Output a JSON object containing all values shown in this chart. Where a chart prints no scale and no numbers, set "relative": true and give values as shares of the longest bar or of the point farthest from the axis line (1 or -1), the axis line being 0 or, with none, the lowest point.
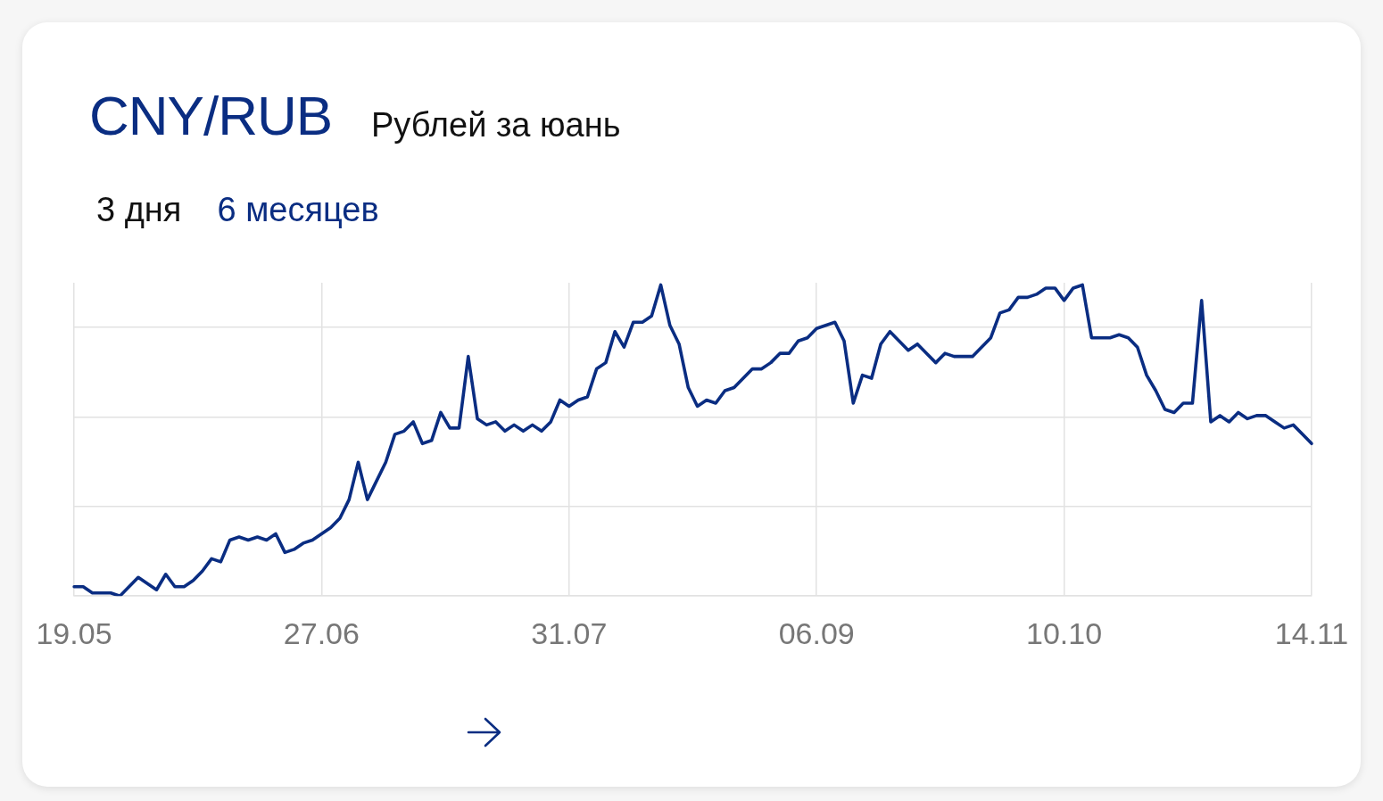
{
  "chart_data": {
    "type": "line",
    "title": "CNY/RUB",
    "subtitle": "Рублей за юань",
    "annotations": [
      "3 дня",
      "6 месяцев"
    ],
    "categories": [
      "19.05",
      null,
      null,
      null,
      null,
      null,
      null,
      null,
      null,
      null,
      null,
      null,
      null,
      null,
      null,
      null,
      null,
      null,
      null,
      null,
      null,
      null,
      null,
      null,
      null,
      null,
      null,
      "27.06",
      null,
      null,
      null,
      null,
      null,
      null,
      null,
      null,
      null,
      null,
      null,
      null,
      null,
      null,
      null,
      null,
      null,
      null,
      null,
      null,
      null,
      null,
      null,
      null,
      null,
      null,
      "31.07",
      null,
      null,
      null,
      null,
      null,
      null,
      null,
      null,
      null,
      null,
      null,
      null,
      null,
      null,
      null,
      null,
      null,
      null,
      null,
      null,
      null,
      null,
      null,
      null,
      null,
      null,
      "06.09",
      null,
      null,
      null,
      null,
      null,
      null,
      null,
      null,
      null,
      null,
      null,
      null,
      null,
      null,
      null,
      null,
      null,
      null,
      null,
      null,
      null,
      null,
      null,
      null,
      null,
      null,
      "10.10",
      null,
      null,
      null,
      null,
      null,
      null,
      null,
      null,
      null,
      null,
      null,
      null,
      null,
      null,
      null,
      null,
      null,
      null,
      null,
      null,
      null,
      null,
      null,
      null,
      null,
      null,
      "14.11"
    ],
    "values": [
      0.03,
      0.03,
      0.01,
      0.01,
      0.01,
      0,
      0.03,
      0.06,
      0.04,
      0.02,
      0.07,
      0.03,
      0.03,
      0.05,
      0.08,
      0.12,
      0.11,
      0.18,
      0.19,
      0.18,
      0.19,
      0.18,
      0.2,
      0.14,
      0.15,
      0.17,
      0.18,
      0.2,
      0.22,
      0.25,
      0.31,
      0.43,
      0.31,
      0.37,
      0.43,
      0.52,
      0.53,
      0.56,
      0.49,
      0.5,
      0.59,
      0.54,
      0.54,
      0.77,
      0.57,
      0.55,
      0.56,
      0.53,
      0.55,
      0.53,
      0.55,
      0.53,
      0.56,
      0.63,
      0.61,
      0.63,
      0.64,
      0.73,
      0.75,
      0.85,
      0.8,
      0.88,
      0.88,
      0.9,
      1.0,
      0.87,
      0.81,
      0.67,
      0.61,
      0.63,
      0.62,
      0.66,
      0.67,
      0.7,
      0.73,
      0.73,
      0.75,
      0.78,
      0.78,
      0.82,
      0.83,
      0.86,
      0.87,
      0.88,
      0.82,
      0.62,
      0.71,
      0.7,
      0.81,
      0.85,
      0.82,
      0.79,
      0.81,
      0.78,
      0.75,
      0.78,
      0.77,
      0.77,
      0.77,
      0.8,
      0.83,
      0.91,
      0.92,
      0.96,
      0.96,
      0.97,
      0.99,
      0.99,
      0.95,
      0.99,
      1.0,
      0.83,
      0.83,
      0.83,
      0.84,
      0.83,
      0.8,
      0.71,
      0.66,
      0.6,
      0.59,
      0.62,
      0.62,
      0.95,
      0.56,
      0.58,
      0.56,
      0.59,
      0.57,
      0.58,
      0.58,
      0.56,
      0.54,
      0.55,
      0.52,
      0.49
    ],
    "color": "#0a2d82",
    "relative": true,
    "grid": true
  }
}
